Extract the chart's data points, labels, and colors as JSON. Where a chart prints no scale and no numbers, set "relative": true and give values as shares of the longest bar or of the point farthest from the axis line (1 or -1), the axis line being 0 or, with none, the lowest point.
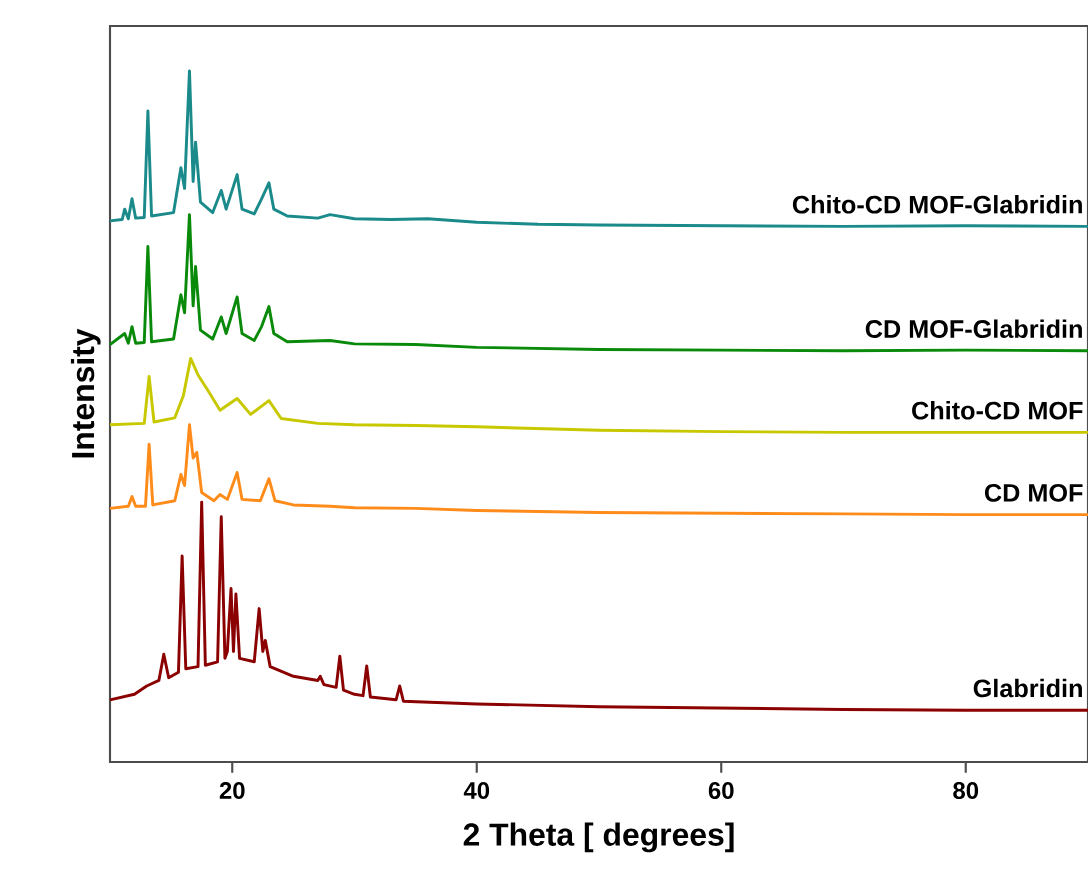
{
  "chart_data": {
    "type": "line",
    "relative": true,
    "xlabel": "2 Theta [ degrees]",
    "ylabel": "Intensity",
    "xlim": [
      10,
      90
    ],
    "xticks": [
      20,
      40,
      60,
      80
    ],
    "tick_labels": "x",
    "marker": "none",
    "line_style": "solid",
    "series": [
      {
        "name": "Chito-CD MOF-Glabridin",
        "color": "#1a8a8a",
        "x": [
          10,
          11.0,
          11.2,
          11.5,
          11.8,
          12.1,
          12.8,
          13.1,
          13.4,
          15.2,
          15.8,
          16.1,
          16.5,
          16.8,
          17.0,
          17.4,
          18.4,
          19.1,
          19.5,
          20.4,
          20.8,
          21.8,
          22.4,
          23.0,
          23.4,
          24.5,
          27,
          28,
          30,
          33,
          36,
          40,
          45,
          50,
          60,
          70,
          80,
          90
        ],
        "values": [
          0.783,
          0.785,
          0.8,
          0.786,
          0.815,
          0.787,
          0.788,
          0.942,
          0.79,
          0.795,
          0.86,
          0.83,
          1.0,
          0.84,
          0.897,
          0.81,
          0.795,
          0.827,
          0.8,
          0.85,
          0.8,
          0.793,
          0.815,
          0.838,
          0.8,
          0.79,
          0.787,
          0.792,
          0.786,
          0.785,
          0.786,
          0.781,
          0.778,
          0.777,
          0.776,
          0.775,
          0.776,
          0.775
        ]
      },
      {
        "name": "CD MOF-Glabridin",
        "color": "#0a8a0a",
        "x": [
          10,
          11.2,
          11.5,
          11.8,
          12.1,
          12.8,
          13.1,
          13.4,
          15.2,
          15.8,
          16.1,
          16.5,
          16.8,
          17.0,
          17.4,
          18.4,
          19.1,
          19.5,
          20.4,
          20.8,
          21.8,
          22.4,
          23.0,
          23.4,
          24.5,
          28,
          30,
          35,
          40,
          50,
          60,
          70,
          80,
          90
        ],
        "values": [
          0.604,
          0.62,
          0.606,
          0.63,
          0.606,
          0.607,
          0.746,
          0.608,
          0.612,
          0.676,
          0.65,
          0.792,
          0.66,
          0.717,
          0.625,
          0.612,
          0.644,
          0.62,
          0.673,
          0.62,
          0.61,
          0.63,
          0.659,
          0.62,
          0.608,
          0.61,
          0.605,
          0.604,
          0.6,
          0.597,
          0.596,
          0.595,
          0.596,
          0.595
        ]
      },
      {
        "name": "Chito-CD MOF",
        "color": "#c8c800",
        "x": [
          10,
          12.8,
          13.2,
          13.6,
          15.3,
          16.0,
          16.6,
          17.2,
          18.0,
          19.0,
          20.4,
          21.5,
          23.0,
          24.0,
          27,
          30,
          35,
          40,
          50,
          60,
          70,
          80,
          90
        ],
        "values": [
          0.488,
          0.49,
          0.558,
          0.492,
          0.498,
          0.53,
          0.584,
          0.56,
          0.538,
          0.509,
          0.526,
          0.503,
          0.523,
          0.497,
          0.49,
          0.488,
          0.487,
          0.485,
          0.48,
          0.478,
          0.477,
          0.477,
          0.477
        ]
      },
      {
        "name": "CD MOF",
        "color": "#ff8c1a",
        "x": [
          10,
          11.5,
          11.8,
          12.1,
          12.9,
          13.2,
          13.5,
          15.3,
          15.8,
          16.1,
          16.5,
          16.8,
          17.1,
          17.5,
          18.5,
          19.0,
          19.6,
          20.4,
          20.8,
          22.3,
          23.0,
          23.5,
          25,
          28,
          30,
          35,
          40,
          50,
          60,
          70,
          80,
          90
        ],
        "values": [
          0.367,
          0.37,
          0.384,
          0.37,
          0.37,
          0.46,
          0.372,
          0.378,
          0.416,
          0.4,
          0.488,
          0.44,
          0.448,
          0.39,
          0.378,
          0.387,
          0.38,
          0.419,
          0.38,
          0.378,
          0.41,
          0.378,
          0.372,
          0.37,
          0.368,
          0.367,
          0.364,
          0.361,
          0.36,
          0.359,
          0.358,
          0.358
        ]
      },
      {
        "name": "Glabridin",
        "color": "#8b0000",
        "x": [
          10,
          12,
          13,
          14.0,
          14.4,
          14.8,
          15.6,
          15.9,
          16.2,
          17.2,
          17.5,
          17.8,
          18.8,
          19.1,
          19.4,
          19.6,
          19.9,
          20.1,
          20.3,
          20.6,
          21.8,
          22.2,
          22.5,
          22.7,
          23.1,
          25,
          27.0,
          27.2,
          27.5,
          28.5,
          28.8,
          29.1,
          30,
          30.7,
          31.0,
          31.3,
          33.4,
          33.7,
          34.0,
          40,
          50,
          60,
          70,
          80,
          90
        ],
        "values": [
          0.09,
          0.098,
          0.11,
          0.118,
          0.156,
          0.122,
          0.13,
          0.298,
          0.135,
          0.138,
          0.376,
          0.14,
          0.145,
          0.355,
          0.15,
          0.16,
          0.251,
          0.16,
          0.243,
          0.15,
          0.145,
          0.222,
          0.16,
          0.176,
          0.138,
          0.124,
          0.118,
          0.124,
          0.112,
          0.108,
          0.153,
          0.104,
          0.098,
          0.096,
          0.139,
          0.094,
          0.09,
          0.11,
          0.088,
          0.084,
          0.08,
          0.078,
          0.076,
          0.075,
          0.075
        ]
      }
    ]
  }
}
